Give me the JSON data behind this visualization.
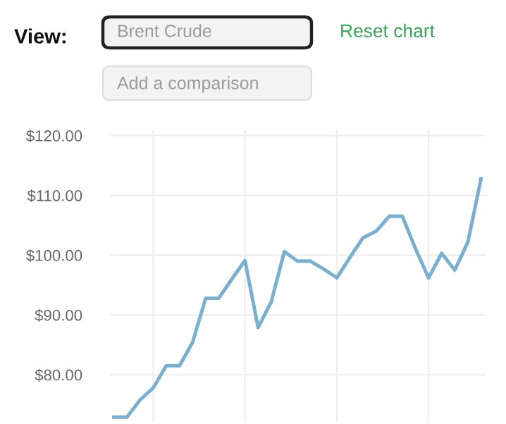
{
  "chart_data": {
    "type": "line",
    "annotations": [
      "View:",
      "Brent Crude",
      "Reset chart",
      "Add a comparison"
    ],
    "categories": [
      null,
      null,
      null,
      null,
      null,
      null,
      null,
      null,
      null,
      null,
      null,
      null,
      null,
      null,
      null,
      null,
      null,
      null,
      null,
      null,
      null,
      null,
      null,
      null,
      null,
      null,
      null,
      null,
      null
    ],
    "series": [
      {
        "color": "#7aafd0",
        "values": [
          72.9,
          72.9,
          75.8,
          77.8,
          81.5,
          81.5,
          85.4,
          92.8,
          92.8,
          96.0,
          99.1,
          87.9,
          92.2,
          100.6,
          99.0,
          99.0,
          97.7,
          96.2,
          99.6,
          102.9,
          104.0,
          106.5,
          106.5,
          101.1,
          96.2,
          100.3,
          97.5,
          102.2,
          112.8
        ]
      }
    ],
    "ylim": [
      72,
      121
    ],
    "yticks": [
      {
        "value": 80,
        "label": "$80.00"
      },
      {
        "value": 90,
        "label": "$90.00"
      },
      {
        "value": 100,
        "label": "$100.00"
      },
      {
        "value": 110,
        "label": "$110.00"
      },
      {
        "value": 120,
        "label": "$120.00"
      }
    ],
    "tick_labels": "y",
    "grid": true,
    "marker": "none",
    "line_style": "solid"
  }
}
